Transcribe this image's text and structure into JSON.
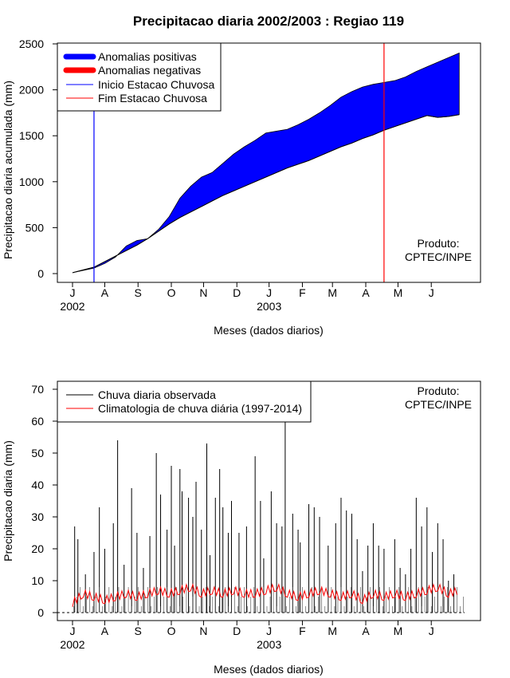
{
  "title": "Precipitacao diaria 2002/2003 : Regiao 119",
  "credit_line1": "Produto:",
  "credit_line2": "CPTEC/INPE",
  "month_ticks": [
    "J",
    "A",
    "S",
    "O",
    "N",
    "D",
    "J",
    "F",
    "M",
    "A",
    "M",
    "J"
  ],
  "year_labels": [
    "2002",
    "2003"
  ],
  "colors": {
    "positive": "#0000ff",
    "negative": "#ff0000",
    "onset": "#0000ff",
    "end": "#ff0000",
    "observed": "#000000",
    "climatology": "#ff0000"
  },
  "chart_data": [
    {
      "type": "area",
      "title": "Precipitacao diaria 2002/2003 : Regiao 119",
      "xlabel": "Meses (dados diarios)",
      "ylabel": "Precipitacao diaria acumulada (mm)",
      "ylim": [
        0,
        2500
      ],
      "yticks": [
        0,
        500,
        1000,
        1500,
        2000,
        2500
      ],
      "xlim_days": [
        0,
        365
      ],
      "legend": [
        "Anomalias positivas",
        "Anomalias negativas",
        "Inicio Estacao Chuvosa",
        "Fim Estacao Chuvosa"
      ],
      "legend_position": "top-left",
      "onset_day": 20,
      "end_day": 290,
      "observed_cumulative": {
        "days": [
          0,
          10,
          20,
          30,
          40,
          50,
          60,
          70,
          80,
          90,
          100,
          110,
          120,
          130,
          140,
          150,
          160,
          170,
          180,
          190,
          200,
          210,
          220,
          230,
          240,
          250,
          260,
          270,
          280,
          290,
          300,
          310,
          320,
          330,
          340,
          350,
          360
        ],
        "values": [
          10,
          35,
          60,
          110,
          180,
          300,
          360,
          380,
          480,
          620,
          820,
          950,
          1050,
          1100,
          1200,
          1300,
          1380,
          1450,
          1530,
          1550,
          1570,
          1620,
          1680,
          1750,
          1830,
          1920,
          1980,
          2030,
          2060,
          2080,
          2100,
          2140,
          2200,
          2250,
          2300,
          2350,
          2400
        ]
      },
      "climatology_cumulative": {
        "days": [
          0,
          10,
          20,
          30,
          40,
          50,
          60,
          70,
          80,
          90,
          100,
          110,
          120,
          130,
          140,
          150,
          160,
          170,
          180,
          190,
          200,
          210,
          220,
          230,
          240,
          250,
          260,
          270,
          280,
          290,
          300,
          310,
          320,
          330,
          340,
          350,
          360
        ],
        "values": [
          10,
          40,
          70,
          130,
          190,
          250,
          310,
          380,
          460,
          540,
          610,
          670,
          730,
          790,
          850,
          900,
          950,
          1000,
          1050,
          1100,
          1150,
          1190,
          1230,
          1280,
          1330,
          1380,
          1420,
          1470,
          1510,
          1560,
          1600,
          1640,
          1680,
          1720,
          1700,
          1710,
          1730
        ]
      }
    },
    {
      "type": "line",
      "xlabel": "Meses (dados diarios)",
      "ylabel": "Precipitacao diaria (mm)",
      "ylim": [
        0,
        70
      ],
      "yticks": [
        0,
        10,
        20,
        30,
        40,
        50,
        60,
        70
      ],
      "xlim_days": [
        0,
        365
      ],
      "legend": [
        "Chuva diaria observada",
        "Climatologia de chuva diária (1997-2014)"
      ],
      "legend_position": "top-left",
      "observed_peaks": {
        "days": [
          2,
          5,
          12,
          20,
          25,
          30,
          38,
          42,
          48,
          55,
          60,
          66,
          72,
          78,
          82,
          88,
          92,
          95,
          100,
          102,
          108,
          112,
          115,
          120,
          125,
          128,
          133,
          137,
          140,
          145,
          148,
          155,
          162,
          170,
          175,
          178,
          185,
          190,
          195,
          198,
          205,
          210,
          212,
          220,
          225,
          230,
          238,
          245,
          250,
          255,
          260,
          265,
          270,
          275,
          280,
          285,
          290,
          300,
          305,
          310,
          315,
          320,
          325,
          330,
          335,
          340,
          345,
          350,
          355
        ],
        "values": [
          27,
          23,
          12,
          19,
          33,
          20,
          28,
          54,
          15,
          39,
          25,
          14,
          24,
          50,
          37,
          26,
          46,
          21,
          45,
          38,
          36,
          30,
          41,
          26,
          53,
          18,
          36,
          45,
          33,
          25,
          35,
          25,
          27,
          49,
          35,
          17,
          38,
          28,
          27,
          70,
          31,
          26,
          22,
          34,
          33,
          30,
          21,
          28,
          36,
          32,
          31,
          23,
          13,
          21,
          28,
          21,
          20,
          23,
          14,
          12,
          20,
          36,
          27,
          33,
          19,
          28,
          23,
          10,
          12
        ]
      },
      "climatology_daily": {
        "days": [
          0,
          10,
          20,
          30,
          40,
          50,
          60,
          70,
          80,
          90,
          100,
          110,
          120,
          130,
          140,
          150,
          160,
          170,
          180,
          190,
          200,
          210,
          220,
          230,
          240,
          250,
          260,
          270,
          280,
          290,
          300,
          310,
          320,
          330,
          340,
          350,
          360
        ],
        "values": [
          3,
          6,
          5,
          4,
          5,
          6,
          5,
          6,
          7,
          6,
          7,
          8,
          6,
          7,
          6,
          7,
          6,
          6,
          7,
          8,
          6,
          5,
          6,
          7,
          6,
          5,
          6,
          4,
          6,
          5,
          6,
          5,
          6,
          7,
          8,
          6,
          7
        ]
      }
    }
  ],
  "legend_top": {
    "pos": "Anomalias positivas",
    "neg": "Anomalias negativas",
    "onset": "Inicio Estacao Chuvosa",
    "end": "Fim Estacao Chuvosa"
  },
  "legend_bottom": {
    "obs": "Chuva diaria observada",
    "clim": "Climatologia de chuva diária (1997-2014)"
  }
}
